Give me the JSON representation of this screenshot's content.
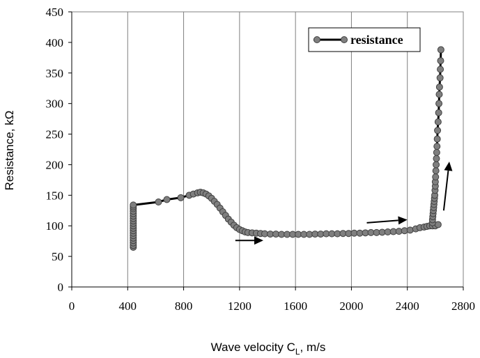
{
  "chart_data": {
    "type": "line",
    "xlabel": "Wave velocity C",
    "xlabel_sub": "L",
    "xlabel_suffix": ", m/s",
    "ylabel": "Resistance, kΩ",
    "xlim": [
      0,
      2800
    ],
    "ylim": [
      0,
      450
    ],
    "x_ticks": [
      0,
      400,
      800,
      1200,
      1600,
      2000,
      2400,
      2800
    ],
    "y_ticks": [
      0,
      50,
      100,
      150,
      200,
      250,
      300,
      350,
      400,
      450
    ],
    "grid": "vertical",
    "legend_position": "top-right",
    "series": [
      {
        "name": "resistance",
        "color": "#000000",
        "marker_color": "#7f7f7f",
        "points": [
          [
            440,
            65
          ],
          [
            440,
            68
          ],
          [
            440,
            72
          ],
          [
            440,
            76
          ],
          [
            440,
            80
          ],
          [
            440,
            84
          ],
          [
            440,
            88
          ],
          [
            440,
            92
          ],
          [
            440,
            96
          ],
          [
            440,
            100
          ],
          [
            440,
            104
          ],
          [
            440,
            108
          ],
          [
            440,
            112
          ],
          [
            440,
            116
          ],
          [
            440,
            120
          ],
          [
            440,
            124
          ],
          [
            440,
            128
          ],
          [
            440,
            131
          ],
          [
            440,
            134
          ],
          [
            620,
            139
          ],
          [
            680,
            143
          ],
          [
            780,
            146
          ],
          [
            840,
            150
          ],
          [
            870,
            152
          ],
          [
            900,
            154
          ],
          [
            920,
            155
          ],
          [
            940,
            154
          ],
          [
            960,
            152
          ],
          [
            980,
            149
          ],
          [
            1000,
            145
          ],
          [
            1020,
            140
          ],
          [
            1040,
            135
          ],
          [
            1060,
            129
          ],
          [
            1080,
            123
          ],
          [
            1100,
            117
          ],
          [
            1120,
            111
          ],
          [
            1140,
            106
          ],
          [
            1160,
            101
          ],
          [
            1180,
            97
          ],
          [
            1200,
            94
          ],
          [
            1220,
            92
          ],
          [
            1240,
            90
          ],
          [
            1260,
            89
          ],
          [
            1290,
            88.5
          ],
          [
            1320,
            88
          ],
          [
            1350,
            87.5
          ],
          [
            1380,
            87
          ],
          [
            1420,
            86.5
          ],
          [
            1460,
            86.5
          ],
          [
            1500,
            86
          ],
          [
            1540,
            86
          ],
          [
            1580,
            86
          ],
          [
            1620,
            86
          ],
          [
            1660,
            86
          ],
          [
            1700,
            86
          ],
          [
            1740,
            86.5
          ],
          [
            1780,
            86.5
          ],
          [
            1820,
            87
          ],
          [
            1860,
            87
          ],
          [
            1900,
            87
          ],
          [
            1940,
            87.5
          ],
          [
            1980,
            87.5
          ],
          [
            2020,
            88
          ],
          [
            2060,
            88
          ],
          [
            2100,
            88.5
          ],
          [
            2140,
            89
          ],
          [
            2180,
            89
          ],
          [
            2220,
            89.5
          ],
          [
            2260,
            90
          ],
          [
            2300,
            90.5
          ],
          [
            2340,
            91
          ],
          [
            2380,
            92
          ],
          [
            2420,
            93
          ],
          [
            2460,
            95
          ],
          [
            2490,
            97
          ],
          [
            2520,
            98
          ],
          [
            2540,
            99
          ],
          [
            2560,
            100
          ],
          [
            2580,
            100
          ],
          [
            2600,
            100
          ],
          [
            2620,
            102
          ],
          [
            2580,
            105
          ],
          [
            2580,
            110
          ],
          [
            2582,
            115
          ],
          [
            2584,
            120
          ],
          [
            2586,
            125
          ],
          [
            2588,
            130
          ],
          [
            2590,
            135
          ],
          [
            2592,
            140
          ],
          [
            2594,
            145
          ],
          [
            2596,
            150
          ],
          [
            2598,
            158
          ],
          [
            2600,
            165
          ],
          [
            2600,
            172
          ],
          [
            2602,
            180
          ],
          [
            2604,
            190
          ],
          [
            2606,
            200
          ],
          [
            2608,
            210
          ],
          [
            2610,
            220
          ],
          [
            2612,
            230
          ],
          [
            2614,
            242
          ],
          [
            2616,
            256
          ],
          [
            2620,
            270
          ],
          [
            2624,
            285
          ],
          [
            2626,
            300
          ],
          [
            2628,
            315
          ],
          [
            2630,
            327
          ],
          [
            2634,
            342
          ],
          [
            2636,
            356
          ],
          [
            2638,
            370
          ],
          [
            2640,
            388
          ]
        ]
      }
    ],
    "annotations": [
      {
        "type": "arrow",
        "from": [
          1170,
          76
        ],
        "to": [
          1370,
          76
        ]
      },
      {
        "type": "arrow",
        "from": [
          2110,
          105
        ],
        "to": [
          2400,
          110
        ]
      },
      {
        "type": "arrow",
        "from": [
          2660,
          125
        ],
        "to": [
          2700,
          205
        ]
      }
    ]
  }
}
